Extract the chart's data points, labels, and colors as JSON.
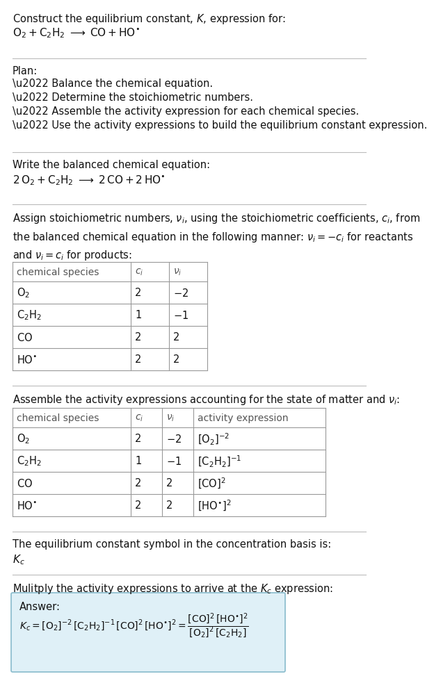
{
  "bg_color": "#ffffff",
  "table_border_color": "#999999",
  "answer_box_color": "#dff0f7",
  "answer_box_border": "#88bbcc",
  "title_line1": "Construct the equilibrium constant, $K$, expression for:",
  "title_line2": "$\\mathrm{O_2 + C_2H_2 \\;\\longrightarrow\\; CO + HO^{\\bullet}}$",
  "plan_header": "Plan:",
  "plan_items": [
    "\\u2022 Balance the chemical equation.",
    "\\u2022 Determine the stoichiometric numbers.",
    "\\u2022 Assemble the activity expression for each chemical species.",
    "\\u2022 Use the activity expressions to build the equilibrium constant expression."
  ],
  "balanced_header": "Write the balanced chemical equation:",
  "balanced_eq": "$\\mathrm{2\\,O_2 + C_2H_2 \\;\\longrightarrow\\; 2\\,CO + 2\\,HO^{\\bullet}}$",
  "assign_text": "Assign stoichiometric numbers, $\\nu_i$, using the stoichiometric coefficients, $c_i$, from\nthe balanced chemical equation in the following manner: $\\nu_i = -c_i$ for reactants\nand $\\nu_i = c_i$ for products:",
  "t1_headers": [
    "chemical species",
    "$c_i$",
    "$\\nu_i$"
  ],
  "t1_rows": [
    [
      "$\\mathrm{O_2}$",
      "2",
      "$-2$"
    ],
    [
      "$\\mathrm{C_2H_2}$",
      "1",
      "$-1$"
    ],
    [
      "$\\mathrm{CO}$",
      "2",
      "2"
    ],
    [
      "$\\mathrm{HO^{\\bullet}}$",
      "2",
      "2"
    ]
  ],
  "assemble_text": "Assemble the activity expressions accounting for the state of matter and $\\nu_i$:",
  "t2_headers": [
    "chemical species",
    "$c_i$",
    "$\\nu_i$",
    "activity expression"
  ],
  "t2_rows": [
    [
      "$\\mathrm{O_2}$",
      "2",
      "$-2$",
      "$[\\mathrm{O_2}]^{-2}$"
    ],
    [
      "$\\mathrm{C_2H_2}$",
      "1",
      "$-1$",
      "$[\\mathrm{C_2H_2}]^{-1}$"
    ],
    [
      "$\\mathrm{CO}$",
      "2",
      "2",
      "$[\\mathrm{CO}]^2$"
    ],
    [
      "$\\mathrm{HO^{\\bullet}}$",
      "2",
      "2",
      "$[\\mathrm{HO^{\\bullet}}]^2$"
    ]
  ],
  "kc_text": "The equilibrium constant symbol in the concentration basis is:",
  "kc_symbol": "$K_c$",
  "multiply_text": "Mulitply the activity expressions to arrive at the $K_c$ expression:",
  "answer_label": "Answer:",
  "kc_expr": "$K_c = [\\mathrm{O_2}]^{-2}\\,[\\mathrm{C_2H_2}]^{-1}\\,[\\mathrm{CO}]^2\\,[\\mathrm{HO^{\\bullet}}]^2 = \\dfrac{[\\mathrm{CO}]^2\\,[\\mathrm{HO^{\\bullet}}]^2}{[\\mathrm{O_2}]^2\\,[\\mathrm{C_2H_2}]}$",
  "divider_color": "#bbbbbb",
  "text_color": "#111111",
  "gray_color": "#555555"
}
